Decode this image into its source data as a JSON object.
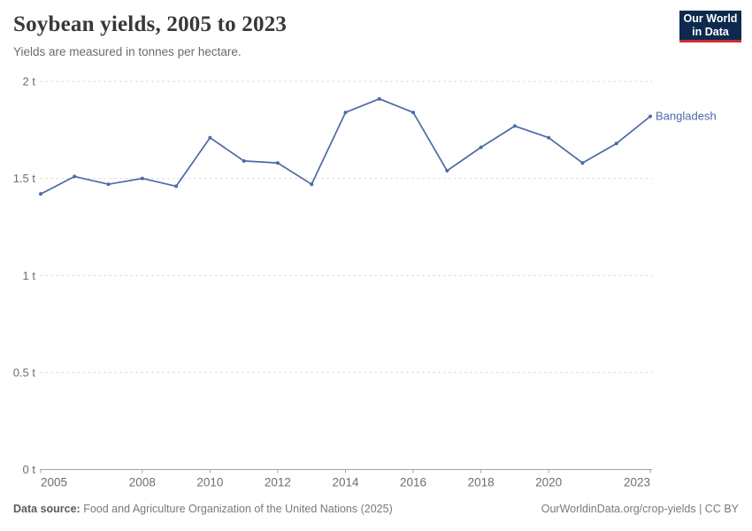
{
  "header": {
    "title": "Soybean yields, 2005 to 2023",
    "subtitle": "Yields are measured in tonnes per hectare."
  },
  "logo": {
    "line1": "Our World",
    "line2": "in Data",
    "bg_color": "#0d2a4e",
    "accent_color": "#cf2d33"
  },
  "chart_data": {
    "type": "line",
    "title": "Soybean yields, 2005 to 2023",
    "ylabel": "tonnes per hectare",
    "x": [
      2005,
      2006,
      2007,
      2008,
      2009,
      2010,
      2011,
      2012,
      2013,
      2014,
      2015,
      2016,
      2017,
      2018,
      2019,
      2020,
      2021,
      2022,
      2023
    ],
    "series": [
      {
        "name": "Bangladesh",
        "color": "#4c6aa6",
        "values": [
          1.42,
          1.51,
          1.47,
          1.5,
          1.46,
          1.71,
          1.59,
          1.58,
          1.47,
          1.84,
          1.91,
          1.84,
          1.54,
          1.66,
          1.77,
          1.71,
          1.58,
          1.68,
          1.82
        ]
      }
    ],
    "ylim": [
      0,
      2
    ],
    "yticks": [
      {
        "v": 0,
        "label": "0 t"
      },
      {
        "v": 0.5,
        "label": "0.5 t"
      },
      {
        "v": 1,
        "label": "1 t"
      },
      {
        "v": 1.5,
        "label": "1.5 t"
      },
      {
        "v": 2,
        "label": "2 t"
      }
    ],
    "xticks": [
      "2005",
      "2008",
      "2010",
      "2012",
      "2014",
      "2016",
      "2018",
      "2020",
      "2023"
    ],
    "grid": "horizontal-dashed",
    "legend_position": "end-of-line-label",
    "colors": {
      "gridline": "#dedede",
      "axis": "#a3a3a3",
      "tick_label": "#6e6e6e"
    }
  },
  "footer": {
    "source_label": "Data source:",
    "source_text": "Food and Agriculture Organization of the United Nations (2025)",
    "url": "OurWorldinData.org/crop-yields",
    "separator": " | ",
    "license": "CC BY"
  }
}
